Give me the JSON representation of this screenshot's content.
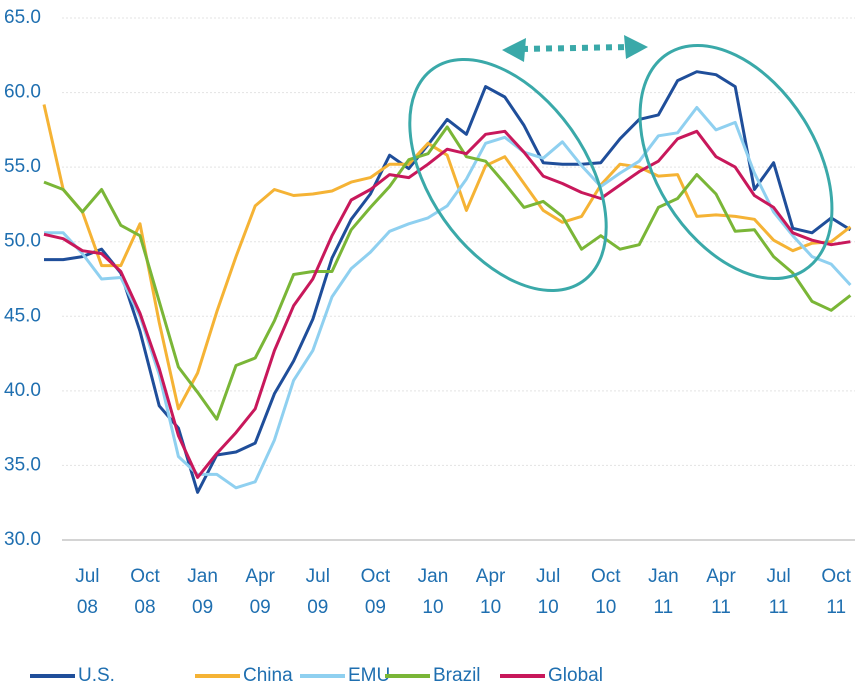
{
  "chart_data": {
    "type": "line",
    "categories": [
      null,
      null,
      "Jul\n08",
      null,
      null,
      "Oct\n08",
      null,
      null,
      "Jan\n09",
      null,
      null,
      "Apr\n09",
      null,
      null,
      "Jul\n09",
      null,
      null,
      "Oct\n09",
      null,
      null,
      "Jan\n10",
      null,
      null,
      "Apr\n10",
      null,
      null,
      "Jul\n10",
      null,
      null,
      "Oct\n10",
      null,
      null,
      "Jan\n11",
      null,
      null,
      "Apr\n11",
      null,
      null,
      "Jul\n11",
      null,
      null,
      "Oct\n11",
      null
    ],
    "series": [
      {
        "name": "U.S.",
        "color": "#1f4e9a",
        "values": [
          48.8,
          48.8,
          49.0,
          49.5,
          47.9,
          44.0,
          39.0,
          37.5,
          33.2,
          35.7,
          35.9,
          36.5,
          39.8,
          42.0,
          44.8,
          48.9,
          51.5,
          53.2,
          55.8,
          54.9,
          56.5,
          58.2,
          57.2,
          60.4,
          59.7,
          57.8,
          55.3,
          55.2,
          55.2,
          55.3,
          56.9,
          58.2,
          58.5,
          60.8,
          61.4,
          61.2,
          60.4,
          53.5,
          55.3,
          50.9,
          50.6,
          51.6,
          50.8
        ]
      },
      {
        "name": "China",
        "color": "#f5b335",
        "values": [
          59.2,
          53.5,
          52.0,
          48.4,
          48.4,
          51.2,
          44.6,
          38.8,
          41.2,
          45.3,
          49.0,
          52.4,
          53.5,
          53.1,
          53.2,
          53.4,
          54.0,
          54.3,
          55.2,
          55.2,
          56.6,
          55.8,
          52.1,
          55.1,
          55.7,
          53.9,
          52.1,
          51.3,
          51.7,
          53.8,
          55.2,
          55.0,
          54.4,
          54.5,
          51.7,
          51.8,
          51.7,
          51.5,
          50.1,
          49.4,
          49.9,
          50.0,
          51.0
        ]
      },
      {
        "name": "EMU",
        "color": "#8fd0f0",
        "values": [
          50.6,
          50.6,
          49.2,
          47.5,
          47.6,
          45.0,
          41.1,
          35.6,
          34.4,
          34.4,
          33.5,
          33.9,
          36.7,
          40.7,
          42.7,
          46.3,
          48.2,
          49.3,
          50.7,
          51.2,
          51.6,
          52.4,
          54.2,
          56.6,
          57.0,
          56.0,
          55.6,
          56.7,
          55.1,
          53.7,
          54.6,
          55.4,
          57.1,
          57.3,
          59.0,
          57.5,
          58.0,
          54.6,
          52.0,
          50.4,
          49.0,
          48.5,
          47.1
        ]
      },
      {
        "name": "Brazil",
        "color": "#7ab637",
        "values": [
          54.0,
          53.5,
          52.0,
          53.5,
          51.1,
          50.4,
          46.0,
          41.6,
          39.9,
          38.1,
          41.7,
          42.2,
          44.7,
          47.8,
          48.0,
          48.0,
          50.8,
          52.3,
          53.7,
          55.5,
          55.9,
          57.7,
          55.7,
          55.4,
          53.9,
          52.3,
          52.7,
          51.7,
          49.5,
          50.4,
          49.5,
          49.8,
          52.3,
          52.9,
          54.5,
          53.2,
          50.7,
          50.8,
          49.0,
          47.9,
          46.0,
          45.4,
          46.4
        ]
      },
      {
        "name": "Global",
        "color": "#c8185b",
        "values": [
          50.5,
          50.2,
          49.4,
          49.2,
          48.0,
          45.2,
          41.5,
          37.0,
          34.2,
          35.8,
          37.2,
          38.8,
          42.7,
          45.7,
          47.5,
          50.4,
          52.8,
          53.5,
          54.5,
          54.3,
          55.2,
          56.2,
          55.9,
          57.2,
          57.4,
          56.0,
          54.4,
          53.9,
          53.3,
          52.9,
          53.8,
          54.7,
          55.4,
          56.9,
          57.4,
          55.7,
          55.0,
          53.1,
          52.3,
          50.6,
          50.1,
          49.8,
          50.0
        ]
      }
    ],
    "ylim": [
      30,
      65
    ],
    "yticks": [
      {
        "value": 30,
        "label": "30.0"
      },
      {
        "value": 35,
        "label": "35.0"
      },
      {
        "value": 40,
        "label": "40.0"
      },
      {
        "value": 45,
        "label": "45.0"
      },
      {
        "value": 50,
        "label": "50.0"
      },
      {
        "value": 55,
        "label": "55.0"
      },
      {
        "value": 60,
        "label": "60.0"
      },
      {
        "value": 65,
        "label": "65.0"
      }
    ],
    "grid": true
  }
}
